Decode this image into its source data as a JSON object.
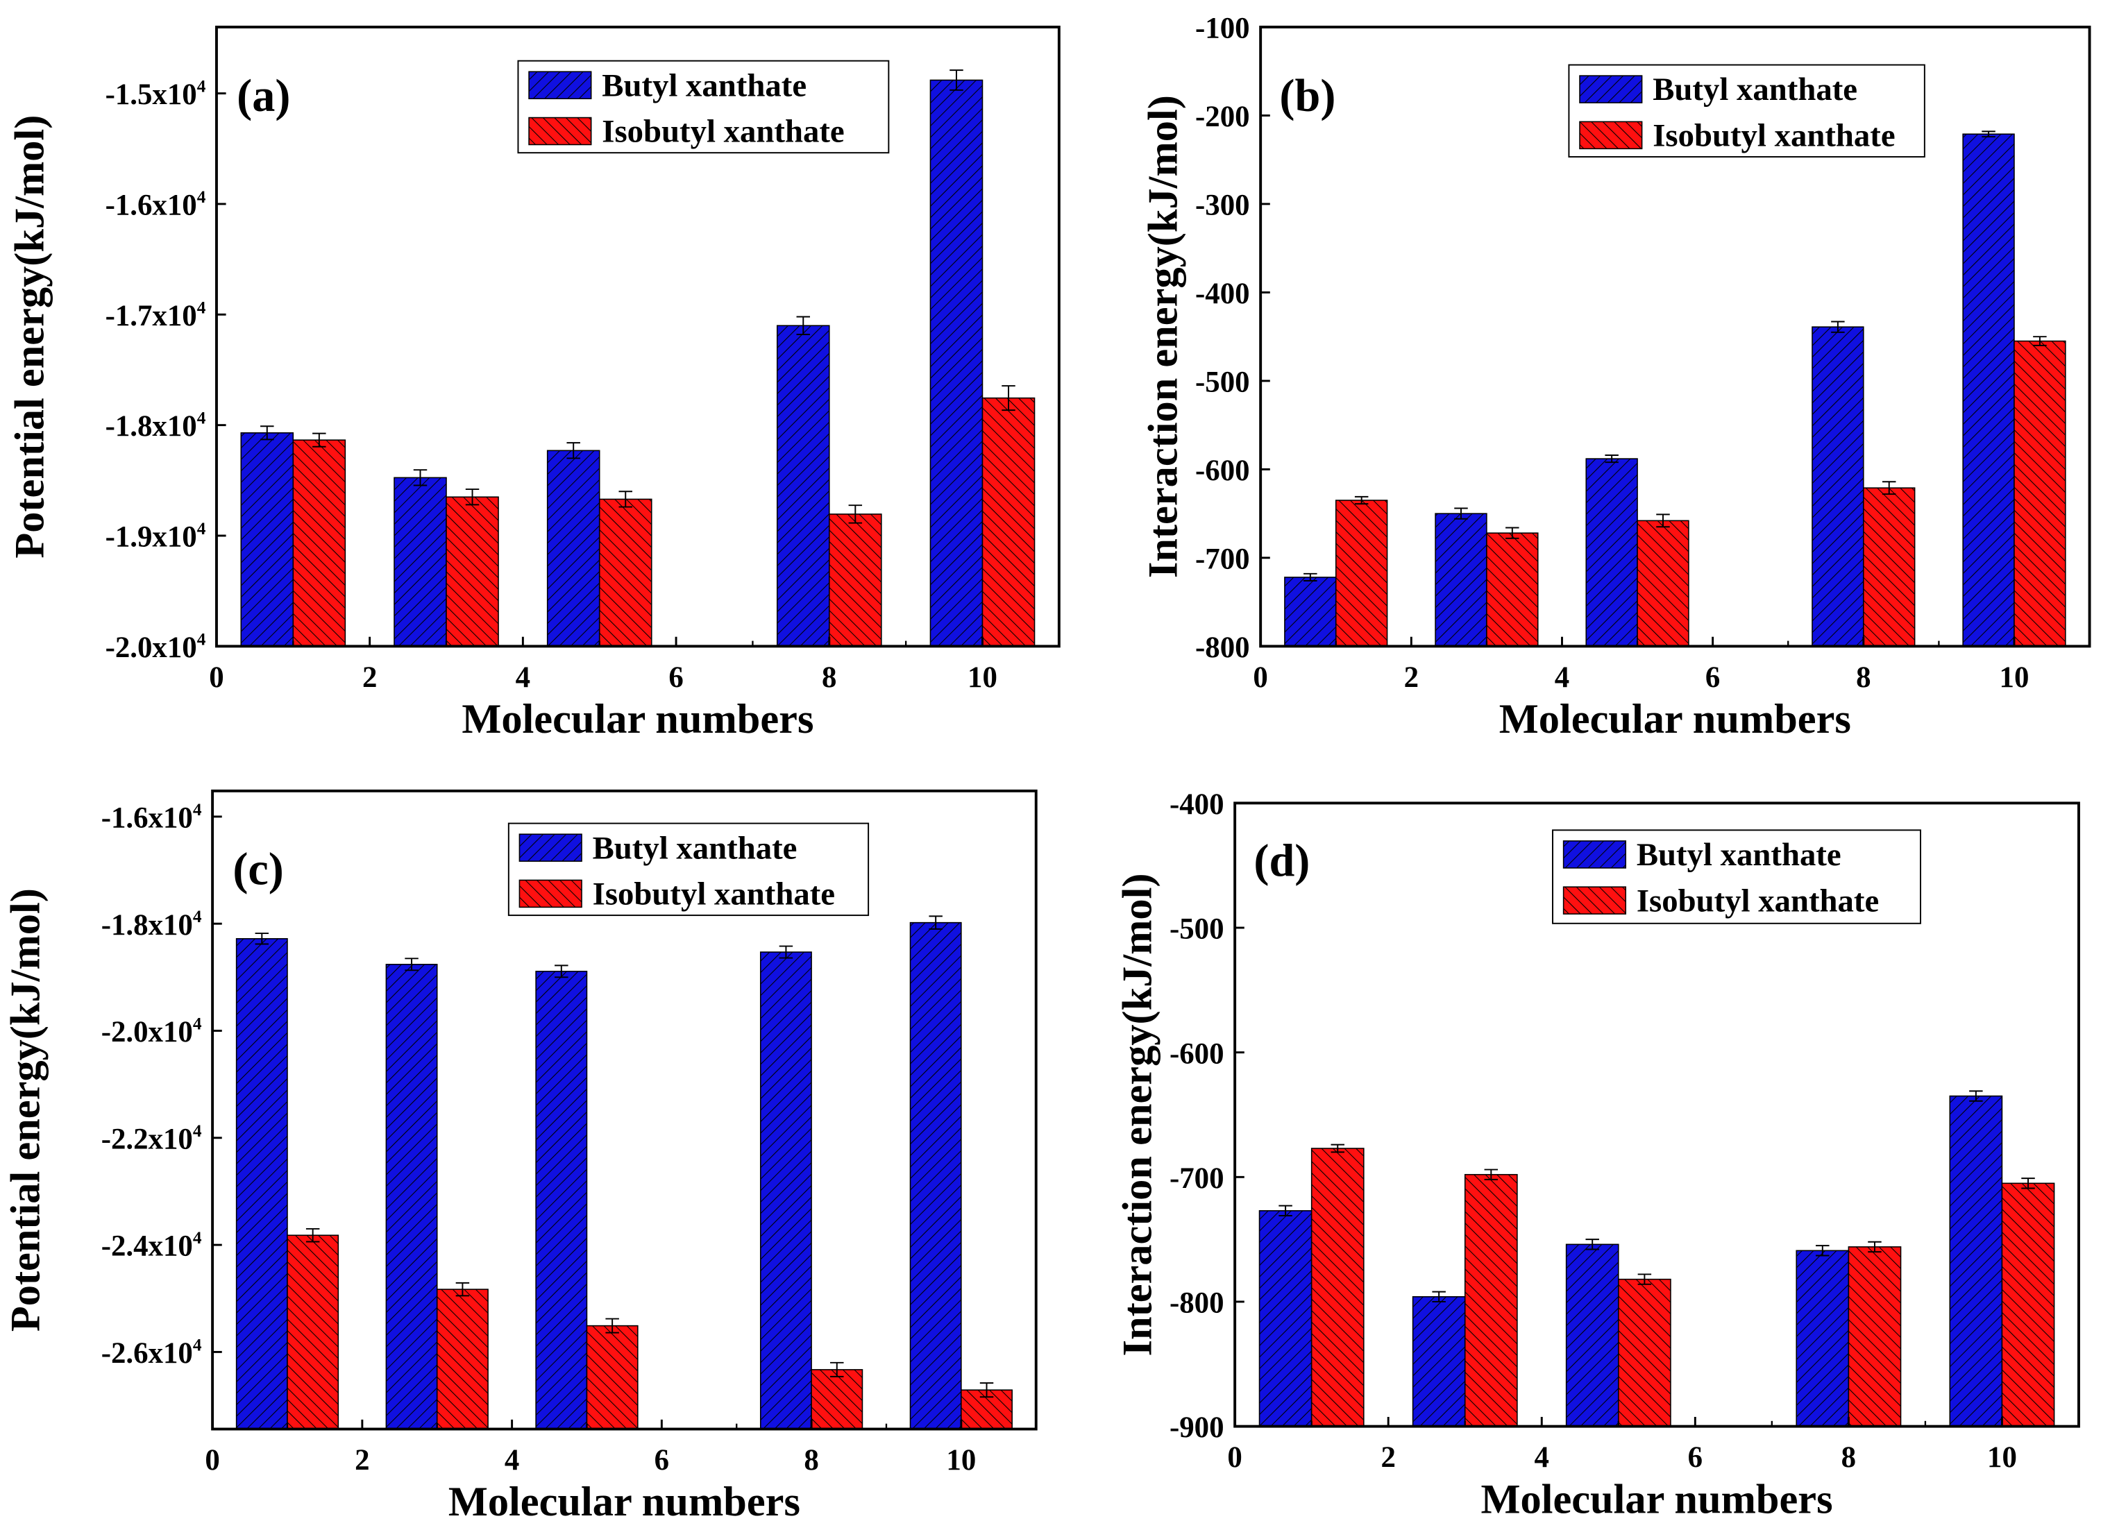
{
  "colors": {
    "butyl": "#1010e0",
    "isobutyl": "#ff1010",
    "hatch": "#000000"
  },
  "chart_data": [
    {
      "type": "bar",
      "panel_label": "(a)",
      "xlabel": "Molecular numbers",
      "ylabel": "Potential energy(kJ/mol)",
      "xlim": [
        0,
        11
      ],
      "ylim": [
        -20000,
        -14400
      ],
      "xticks": [
        0,
        2,
        4,
        6,
        8,
        10
      ],
      "xtick_labels": [
        "0",
        "2",
        "4",
        "6",
        "8",
        "10"
      ],
      "yticks": [
        -20000,
        -19000,
        -18000,
        -17000,
        -16000,
        -15000
      ],
      "ytick_labels": [
        "-2.0x10^4",
        "-1.9x10^4",
        "-1.8x10^4",
        "-1.7x10^4",
        "-1.6x10^4",
        "-1.5x10^4"
      ],
      "x": [
        1,
        3,
        5,
        8,
        10
      ],
      "legend_position": "top-right",
      "series": [
        {
          "name": "Butyl xanthate",
          "values": [
            -18070,
            -18475,
            -18230,
            -17100,
            -14880
          ],
          "errors": [
            60,
            70,
            70,
            80,
            90
          ]
        },
        {
          "name": "Isobutyl xanthate",
          "values": [
            -18135,
            -18650,
            -18670,
            -18805,
            -17755
          ],
          "errors": [
            60,
            70,
            70,
            80,
            110
          ]
        }
      ]
    },
    {
      "type": "bar",
      "panel_label": "(b)",
      "xlabel": "Molecular numbers",
      "ylabel": "Interaction energy(kJ/mol)",
      "xlim": [
        0,
        11
      ],
      "ylim": [
        -800,
        -100
      ],
      "xticks": [
        0,
        2,
        4,
        6,
        8,
        10
      ],
      "xtick_labels": [
        "0",
        "2",
        "4",
        "6",
        "8",
        "10"
      ],
      "yticks": [
        -800,
        -700,
        -600,
        -500,
        -400,
        -300,
        -200,
        -100
      ],
      "ytick_labels": [
        "-800",
        "-700",
        "-600",
        "-500",
        "-400",
        "-300",
        "-200",
        "-100"
      ],
      "x": [
        1,
        3,
        5,
        8,
        10
      ],
      "legend_position": "top-right",
      "series": [
        {
          "name": "Butyl xanthate",
          "values": [
            -722,
            -650,
            -588,
            -439,
            -221
          ],
          "errors": [
            4,
            6,
            4,
            6,
            3
          ]
        },
        {
          "name": "Isobutyl xanthate",
          "values": [
            -635,
            -672,
            -658,
            -621,
            -455
          ],
          "errors": [
            4,
            6,
            7,
            7,
            5
          ]
        }
      ]
    },
    {
      "type": "bar",
      "panel_label": "(c)",
      "xlabel": "Molecular numbers",
      "ylabel": "Potential energy(kJ/mol)",
      "xlim": [
        0,
        11
      ],
      "ylim": [
        -27440,
        -15520
      ],
      "xticks": [
        0,
        2,
        4,
        6,
        8,
        10
      ],
      "xtick_labels": [
        "0",
        "2",
        "4",
        "6",
        "8",
        "10"
      ],
      "yticks": [
        -26000,
        -24000,
        -22000,
        -20000,
        -18000,
        -16000
      ],
      "ytick_labels": [
        "-2.6x10^4",
        "-2.4x10^4",
        "-2.2x10^4",
        "-2.0x10^4",
        "-1.8x10^4",
        "-1.6x10^4"
      ],
      "x": [
        1,
        3,
        5,
        8,
        10
      ],
      "legend_position": "top-right",
      "series": [
        {
          "name": "Butyl xanthate",
          "values": [
            -18280,
            -18760,
            -18890,
            -18530,
            -17980
          ],
          "errors": [
            100,
            110,
            110,
            110,
            120
          ]
        },
        {
          "name": "Isobutyl xanthate",
          "values": [
            -23820,
            -24830,
            -25510,
            -26330,
            -26710
          ],
          "errors": [
            120,
            120,
            130,
            130,
            130
          ]
        }
      ]
    },
    {
      "type": "bar",
      "panel_label": "(d)",
      "xlabel": "Molecular numbers",
      "ylabel": "Interaction energy(kJ/mol)",
      "xlim": [
        0,
        11
      ],
      "ylim": [
        -900,
        -400
      ],
      "xticks": [
        0,
        2,
        4,
        6,
        8,
        10
      ],
      "xtick_labels": [
        "0",
        "2",
        "4",
        "6",
        "8",
        "10"
      ],
      "yticks": [
        -900,
        -800,
        -700,
        -600,
        -500,
        -400
      ],
      "ytick_labels": [
        "-900",
        "-800",
        "-700",
        "-600",
        "-500",
        "-400"
      ],
      "x": [
        1,
        3,
        5,
        8,
        10
      ],
      "legend_position": "top-right",
      "series": [
        {
          "name": "Butyl xanthate",
          "values": [
            -727,
            -796,
            -754,
            -759,
            -635
          ],
          "errors": [
            4,
            4,
            4,
            4,
            4
          ]
        },
        {
          "name": "Isobutyl xanthate",
          "values": [
            -677,
            -698,
            -782,
            -756,
            -705
          ],
          "errors": [
            3,
            4,
            4,
            4,
            4
          ]
        }
      ]
    }
  ]
}
